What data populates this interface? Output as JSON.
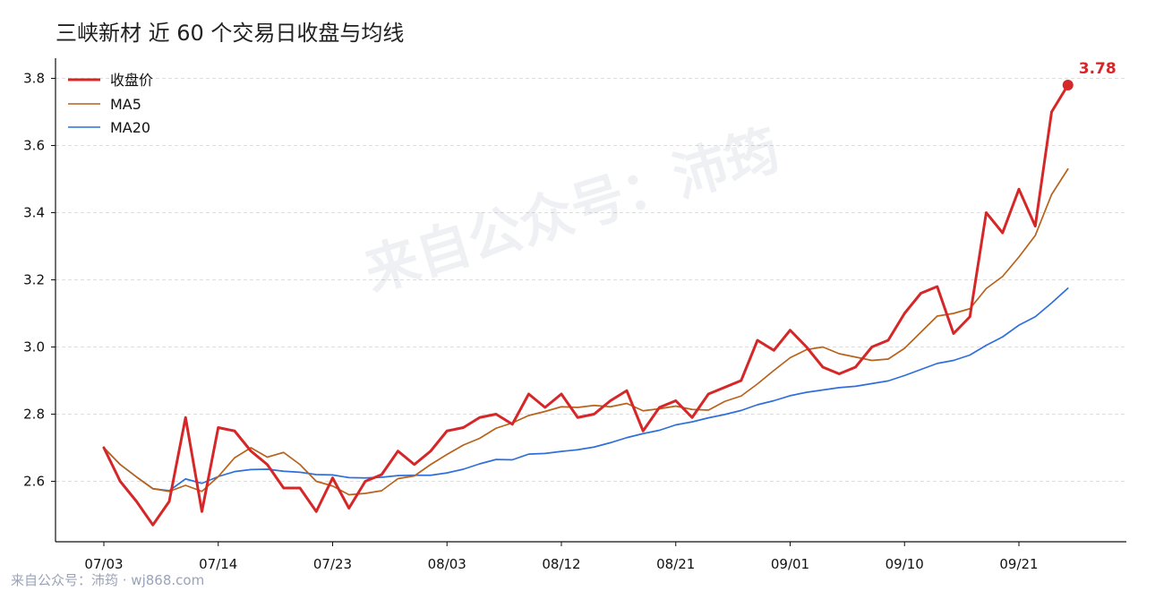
{
  "colors": {
    "close": "#d62728",
    "ma5": "#b8621b",
    "ma20": "#2f6fdc",
    "grid": "#dddddd",
    "axis": "#111111"
  },
  "chart_data": {
    "type": "line",
    "title": "三峡新材 近 60 个交易日收盘与均线",
    "xlabel": "",
    "ylabel": "",
    "ylim": [
      2.42,
      3.86
    ],
    "yticks": [
      2.6,
      2.8,
      3.0,
      3.2,
      3.4,
      3.6,
      3.8
    ],
    "ytick_labels": [
      "2.6",
      "2.8",
      "3.0",
      "3.2",
      "3.4",
      "3.6",
      "3.8"
    ],
    "xticks": [
      {
        "index": 0,
        "label": "07/03"
      },
      {
        "index": 7,
        "label": "07/14"
      },
      {
        "index": 14,
        "label": "07/23"
      },
      {
        "index": 21,
        "label": "08/03"
      },
      {
        "index": 28,
        "label": "08/12"
      },
      {
        "index": 35,
        "label": "08/21"
      },
      {
        "index": 42,
        "label": "09/01"
      },
      {
        "index": 49,
        "label": "09/10"
      },
      {
        "index": 56,
        "label": "09/21"
      }
    ],
    "grid": true,
    "legend_position": "top-left",
    "series": [
      {
        "name": "收盘价",
        "values": [
          2.7,
          2.6,
          2.54,
          2.47,
          2.54,
          2.79,
          2.51,
          2.76,
          2.75,
          2.69,
          2.65,
          2.58,
          2.58,
          2.51,
          2.61,
          2.52,
          2.6,
          2.62,
          2.69,
          2.65,
          2.69,
          2.75,
          2.76,
          2.79,
          2.8,
          2.77,
          2.86,
          2.82,
          2.86,
          2.79,
          2.8,
          2.84,
          2.87,
          2.75,
          2.82,
          2.84,
          2.79,
          2.86,
          2.88,
          2.9,
          3.02,
          2.99,
          3.05,
          3.0,
          2.94,
          2.92,
          2.94,
          3.0,
          3.02,
          3.1,
          3.16,
          3.18,
          3.04,
          3.09,
          3.4,
          3.34,
          3.47,
          3.36,
          3.7,
          3.78
        ]
      },
      {
        "name": "MA5",
        "values": [
          2.7,
          2.65,
          2.613,
          2.578,
          2.57,
          2.588,
          2.57,
          2.614,
          2.67,
          2.7,
          2.672,
          2.686,
          2.65,
          2.6,
          2.586,
          2.56,
          2.564,
          2.572,
          2.608,
          2.616,
          2.65,
          2.68,
          2.708,
          2.728,
          2.758,
          2.774,
          2.796,
          2.808,
          2.822,
          2.82,
          2.826,
          2.822,
          2.832,
          2.81,
          2.816,
          2.824,
          2.814,
          2.812,
          2.838,
          2.854,
          2.89,
          2.93,
          2.968,
          2.992,
          3.0,
          2.98,
          2.97,
          2.96,
          2.964,
          2.996,
          3.044,
          3.092,
          3.1,
          3.114,
          3.174,
          3.21,
          3.268,
          3.332,
          3.454,
          3.53
        ]
      },
      {
        "name": "MA20",
        "values": [
          2.7,
          2.65,
          2.613,
          2.578,
          2.572,
          2.607,
          2.594,
          2.614,
          2.629,
          2.635,
          2.636,
          2.63,
          2.627,
          2.62,
          2.619,
          2.611,
          2.61,
          2.612,
          2.617,
          2.618,
          2.618,
          2.625,
          2.636,
          2.652,
          2.665,
          2.664,
          2.681,
          2.683,
          2.689,
          2.694,
          2.702,
          2.715,
          2.73,
          2.742,
          2.752,
          2.768,
          2.777,
          2.789,
          2.799,
          2.811,
          2.828,
          2.84,
          2.855,
          2.865,
          2.872,
          2.879,
          2.883,
          2.891,
          2.899,
          2.915,
          2.933,
          2.951,
          2.96,
          2.976,
          3.005,
          3.03,
          3.065,
          3.09,
          3.131,
          3.175
        ]
      }
    ],
    "last_value_label": "3.78"
  },
  "watermark": "来自公众号：沛筠",
  "footer": "来自公众号：沛筠 · wj868.com"
}
